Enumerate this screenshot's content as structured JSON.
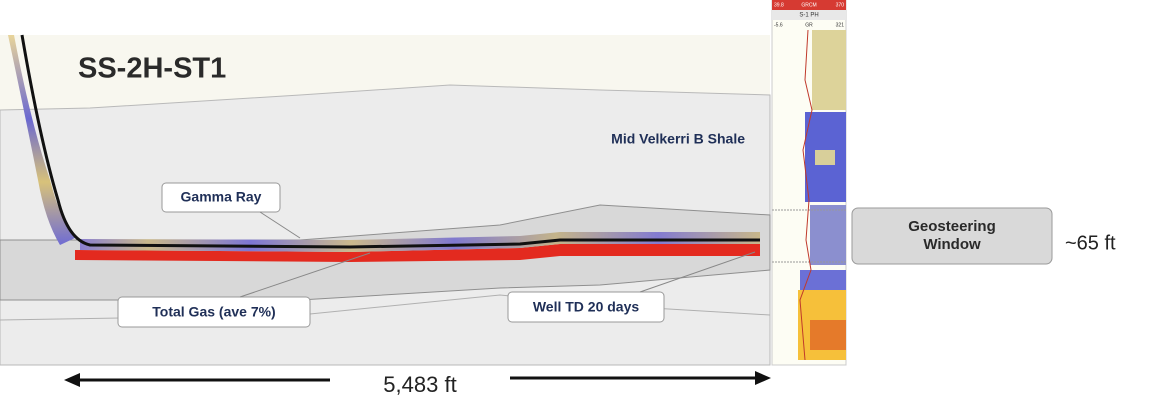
{
  "title": "SS-2H-ST1",
  "formation": "Mid Velkerri B Shale",
  "callouts": {
    "gamma_ray": "Gamma Ray",
    "total_gas": "Total Gas (ave 7%)",
    "well_td": "Well TD 20 days"
  },
  "geosteering": {
    "label": "Geosteering Window",
    "thickness": "~65 ft"
  },
  "lateral_length": "5,483 ft",
  "log_panel": {
    "scale_min": "39.8",
    "curve_name": "GRCM",
    "scale_max": "370",
    "well": "S-1 PH",
    "gr_min": "-5.6",
    "gr_name": "GR",
    "gr_max": "321"
  }
}
